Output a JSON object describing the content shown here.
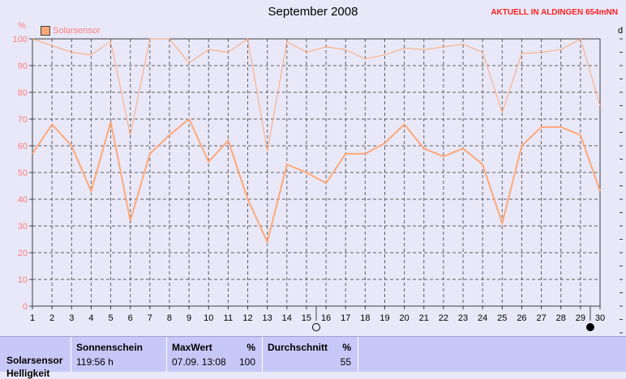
{
  "chart_data": {
    "type": "line",
    "title": "September 2008",
    "ylabel": "%",
    "right_axis_label": "d",
    "ylim": [
      0,
      100
    ],
    "yticks": [
      0,
      10,
      20,
      30,
      40,
      50,
      60,
      70,
      80,
      90,
      100
    ],
    "x": [
      1,
      2,
      3,
      4,
      5,
      6,
      7,
      8,
      9,
      10,
      11,
      12,
      13,
      14,
      15,
      16,
      17,
      18,
      19,
      20,
      21,
      22,
      23,
      24,
      25,
      26,
      27,
      28,
      29,
      30
    ],
    "grid": true,
    "legend_position": "top-left",
    "series": [
      {
        "name": "Solarsensor",
        "color": "#ffa878",
        "line_width": "thick",
        "values": [
          57,
          68,
          60,
          43,
          69,
          32,
          57,
          64,
          70,
          54,
          62,
          40,
          24,
          53,
          50,
          46,
          57,
          57,
          61,
          68,
          59,
          56,
          59,
          53,
          31,
          60,
          67,
          67,
          64,
          43
        ]
      },
      {
        "role": "max",
        "color": "#ffa878",
        "line_width": "thin",
        "values": [
          100,
          97.5,
          95,
          94,
          99,
          64,
          100,
          100,
          91,
          96,
          95,
          100,
          58,
          99,
          95,
          97,
          96,
          92.5,
          94,
          96.5,
          96,
          97,
          98,
          95,
          72.5,
          94.5,
          95,
          96,
          100,
          75
        ]
      }
    ],
    "moon_markers": [
      {
        "day": 15.5,
        "phase": "full"
      },
      {
        "day": 29.5,
        "phase": "new"
      }
    ]
  },
  "header": {
    "station": "AKTUELL IN ALDINGEN 654mNN"
  },
  "table": {
    "row_label": "Solarsensor",
    "row_label_2": "Helligkeit",
    "columns": [
      {
        "header": "Sonnenschein",
        "unit": "",
        "value": "119:56 h",
        "value_right": ""
      },
      {
        "header": "MaxWert",
        "unit": "%",
        "value": "07.09.  13:08",
        "value_right": "100"
      },
      {
        "header": "Durchschnitt",
        "unit": "%",
        "value": "",
        "value_right": "55"
      }
    ]
  }
}
